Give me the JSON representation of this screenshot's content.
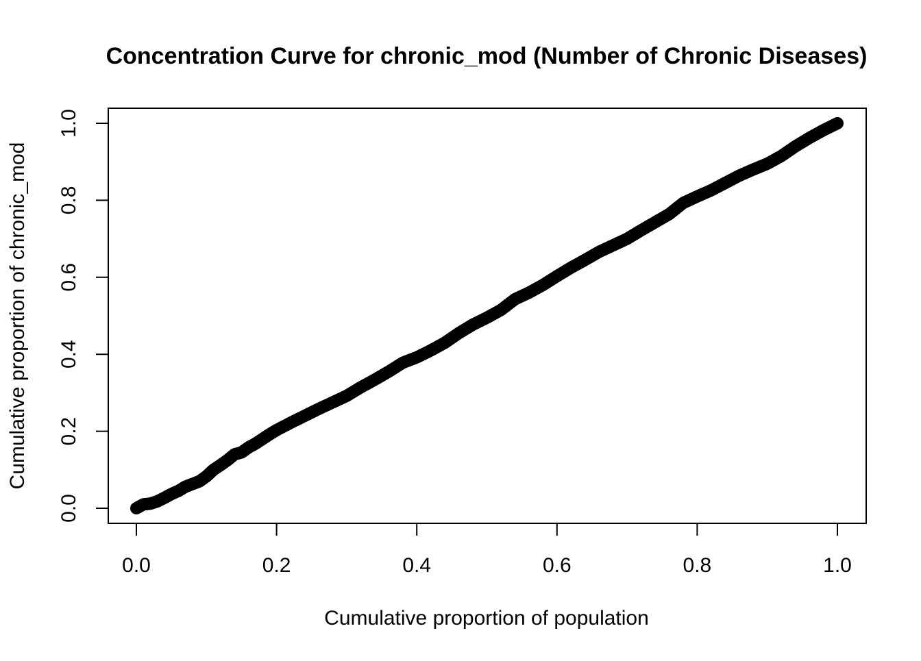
{
  "chart_data": {
    "type": "scatter",
    "title": "Concentration Curve for chronic_mod (Number of Chronic Diseases)",
    "xlabel": "Cumulative proportion of population",
    "ylabel": "Cumulative proportion of chronic_mod",
    "xlim": [
      0.0,
      1.0
    ],
    "ylim": [
      0.0,
      1.0
    ],
    "x_ticks": [
      "0.0",
      "0.2",
      "0.4",
      "0.6",
      "0.8",
      "1.0"
    ],
    "y_ticks": [
      "0.0",
      "0.2",
      "0.4",
      "0.6",
      "0.8",
      "1.0"
    ],
    "grid": false,
    "legend": "none",
    "point_color": "#000000",
    "series": [
      {
        "x": [
          0.0,
          0.01,
          0.02,
          0.03,
          0.04,
          0.05,
          0.06,
          0.07,
          0.08,
          0.09,
          0.1,
          0.11,
          0.12,
          0.13,
          0.14,
          0.15,
          0.16,
          0.17,
          0.18,
          0.19,
          0.2,
          0.22,
          0.24,
          0.26,
          0.28,
          0.3,
          0.32,
          0.34,
          0.36,
          0.38,
          0.4,
          0.42,
          0.44,
          0.46,
          0.48,
          0.5,
          0.52,
          0.54,
          0.56,
          0.58,
          0.6,
          0.62,
          0.64,
          0.66,
          0.68,
          0.7,
          0.72,
          0.74,
          0.76,
          0.78,
          0.8,
          0.82,
          0.84,
          0.86,
          0.88,
          0.9,
          0.92,
          0.94,
          0.96,
          0.98,
          1.0
        ],
        "y": [
          0.0,
          0.01,
          0.012,
          0.018,
          0.027,
          0.037,
          0.045,
          0.056,
          0.063,
          0.07,
          0.083,
          0.1,
          0.112,
          0.125,
          0.14,
          0.145,
          0.158,
          0.168,
          0.18,
          0.192,
          0.203,
          0.222,
          0.24,
          0.258,
          0.275,
          0.292,
          0.314,
          0.334,
          0.355,
          0.378,
          0.392,
          0.41,
          0.43,
          0.455,
          0.477,
          0.495,
          0.515,
          0.543,
          0.56,
          0.58,
          0.603,
          0.625,
          0.645,
          0.666,
          0.683,
          0.7,
          0.722,
          0.743,
          0.764,
          0.793,
          0.81,
          0.826,
          0.845,
          0.864,
          0.88,
          0.895,
          0.915,
          0.94,
          0.962,
          0.982,
          1.0
        ]
      }
    ]
  }
}
